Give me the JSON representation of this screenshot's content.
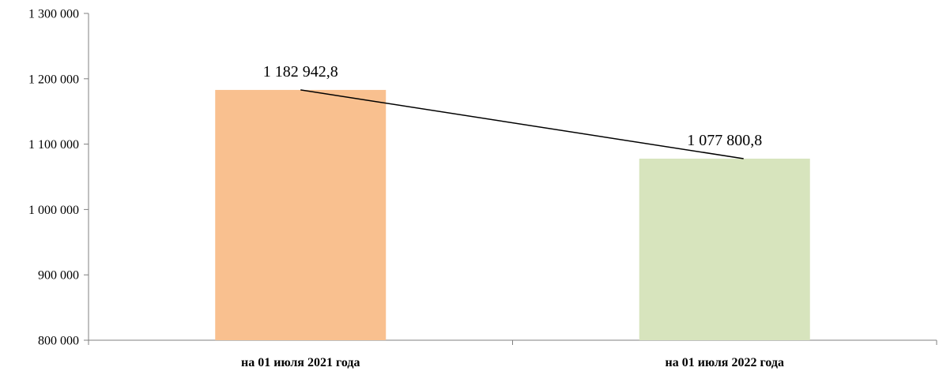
{
  "chart_data": {
    "type": "bar",
    "categories": [
      "на 01 июля 2021 года",
      "на 01 июля 2022 года"
    ],
    "values": [
      1182942.8,
      1077800.8
    ],
    "data_labels": [
      "1 182 942,8",
      "1 077 800,8"
    ],
    "bar_colors": [
      "#F9C08F",
      "#D7E4BD"
    ],
    "connector_line": true,
    "ylim": [
      800000,
      1300000
    ],
    "yticks": [
      800000,
      900000,
      1000000,
      1100000,
      1200000,
      1300000
    ],
    "ytick_labels": [
      "800 000",
      "900 000",
      "1 000 000",
      "1 100 000",
      "1 200 000",
      "1 300 000"
    ],
    "grid": false,
    "title": "",
    "xlabel": "",
    "ylabel": ""
  }
}
